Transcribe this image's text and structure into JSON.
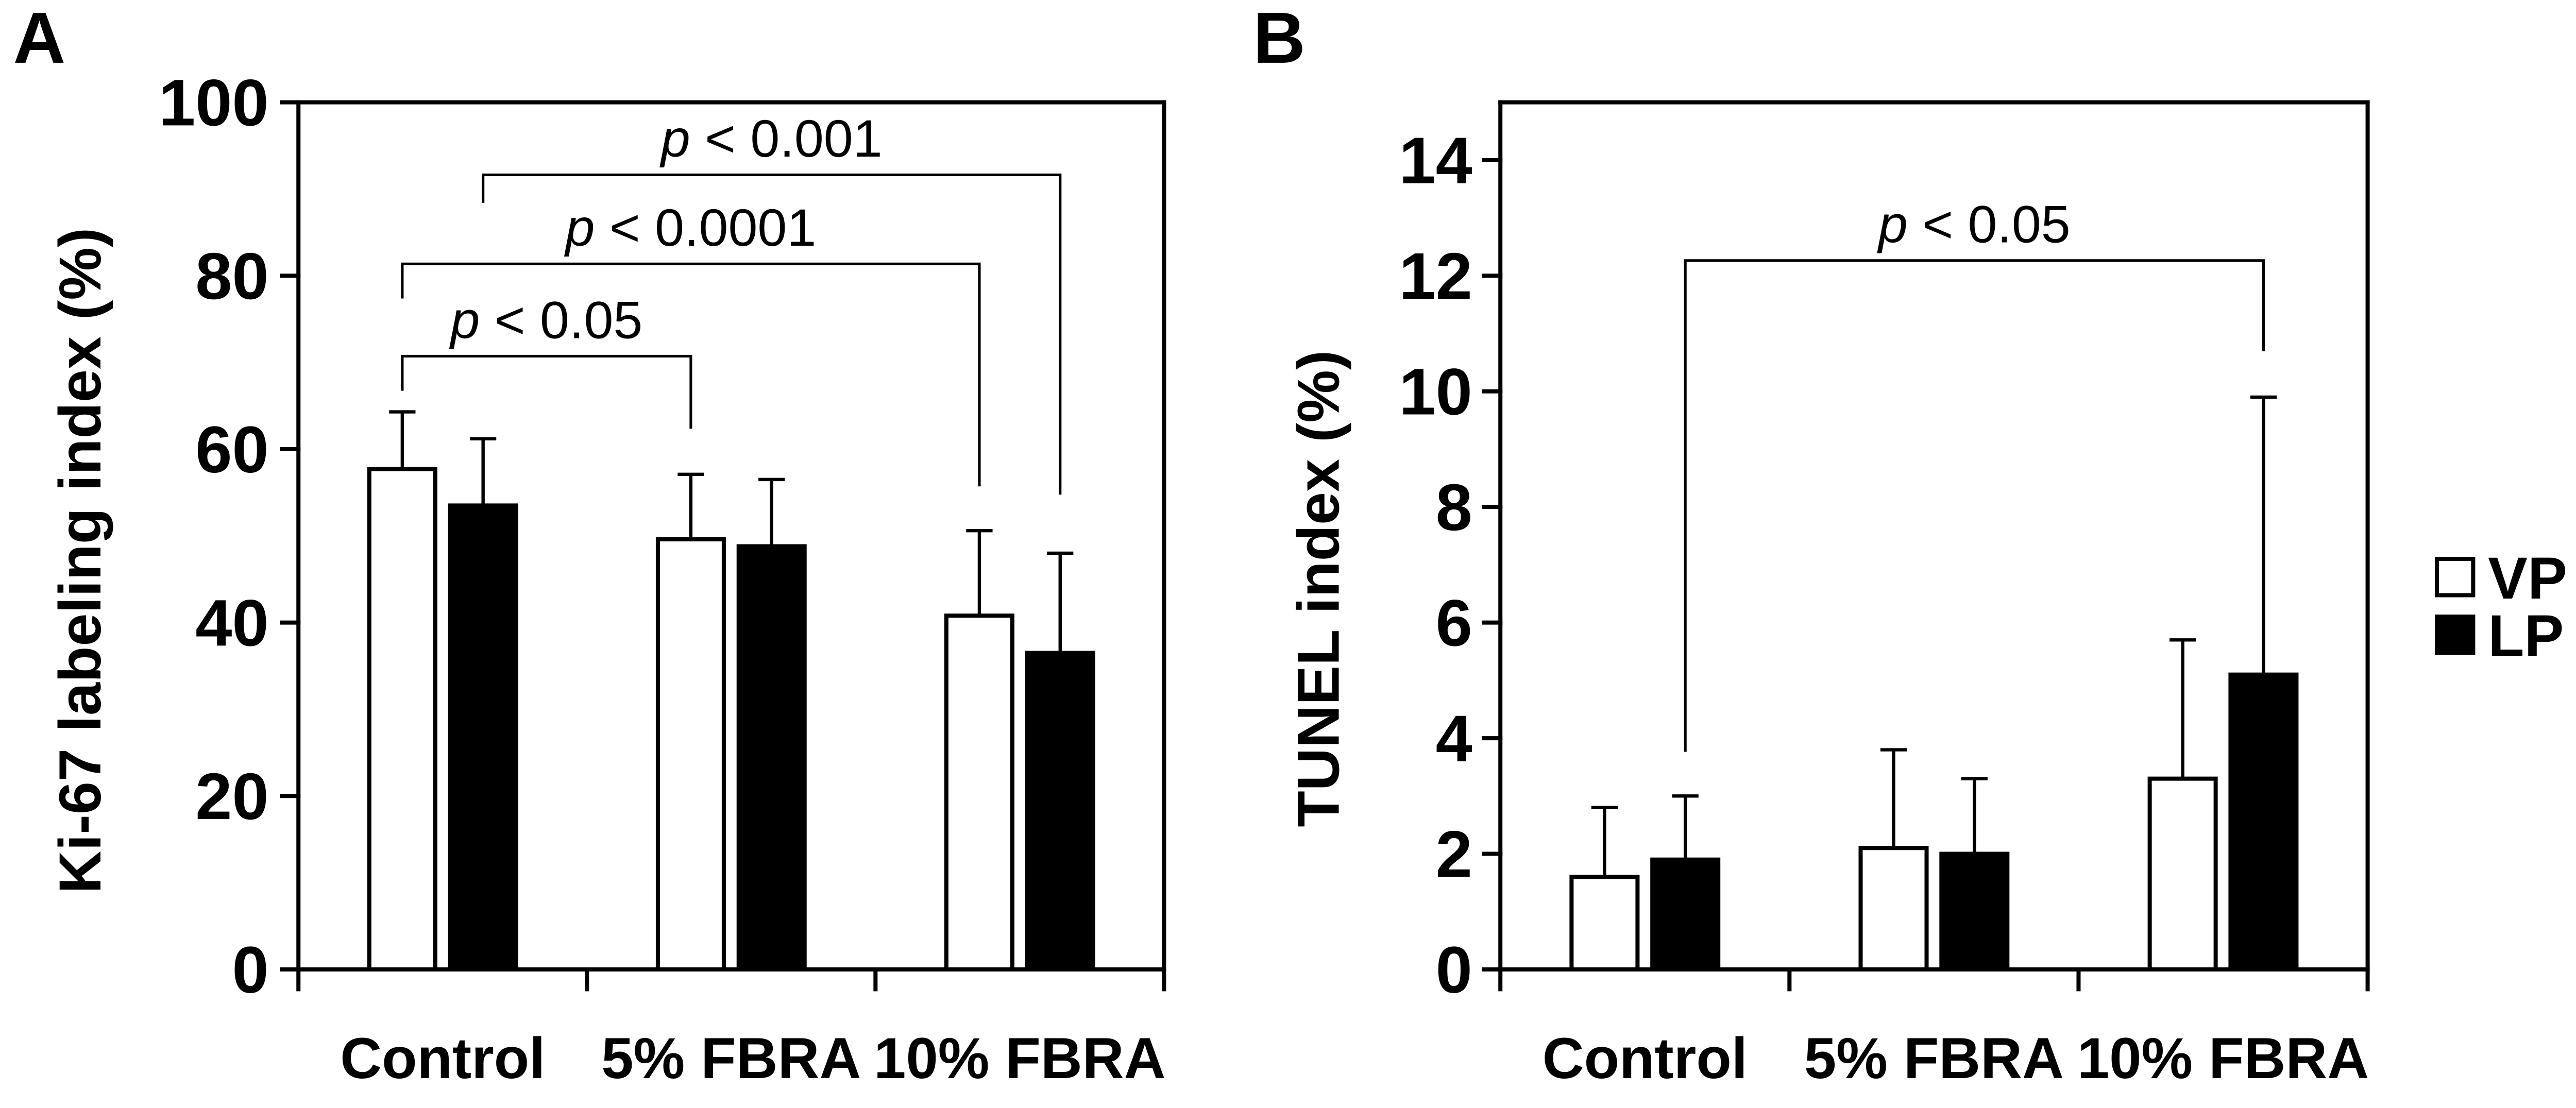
{
  "chart_data": [
    {
      "panel_label": "A",
      "type": "bar",
      "categories": [
        "Control",
        "5% FBRA",
        "10% FBRA"
      ],
      "ylabel": "Ki-67 labeling index (%)",
      "ylim": [
        0,
        100
      ],
      "yticks": [
        0,
        20,
        40,
        60,
        80,
        100
      ],
      "grid": false,
      "series": [
        {
          "legend_entry": 0,
          "values": [
            57.7,
            49.6,
            40.8
          ],
          "error_plus": [
            6.6,
            7.5,
            9.8
          ]
        },
        {
          "legend_entry": 1,
          "values": [
            53.5,
            48.8,
            36.5
          ],
          "error_plus": [
            7.7,
            7.7,
            11.5
          ]
        }
      ],
      "annotations": [
        {
          "text": "p < 0.05",
          "from": {
            "category": 0,
            "series": 0
          },
          "to": {
            "category": 1,
            "series": 0
          }
        },
        {
          "text": "p < 0.0001",
          "from": {
            "category": 0,
            "series": 0
          },
          "to": {
            "category": 2,
            "series": 0
          }
        },
        {
          "text": "p < 0.001",
          "from": {
            "category": 0,
            "series": 1
          },
          "to": {
            "category": 2,
            "series": 1
          }
        }
      ]
    },
    {
      "panel_label": "B",
      "type": "bar",
      "categories": [
        "Control",
        "5% FBRA",
        "10% FBRA"
      ],
      "ylabel": "TUNEL index (%)",
      "ylim": [
        0,
        15
      ],
      "yticks": [
        0,
        2,
        4,
        6,
        8,
        10,
        12,
        14
      ],
      "grid": false,
      "series": [
        {
          "legend_entry": 0,
          "values": [
            1.6,
            2.1,
            3.3
          ],
          "error_plus": [
            1.2,
            1.7,
            2.4
          ]
        },
        {
          "legend_entry": 1,
          "values": [
            1.9,
            2.0,
            5.1
          ],
          "error_plus": [
            1.1,
            1.3,
            4.8
          ]
        }
      ],
      "annotations": [
        {
          "text": "p < 0.05",
          "from": {
            "category": 0,
            "series": 1
          },
          "to": {
            "category": 2,
            "series": 1
          }
        }
      ],
      "legend": {
        "position": "right",
        "outline": "#000000",
        "entries": [
          {
            "label": "VP",
            "fill": "#ffffff"
          },
          {
            "label": "LP",
            "fill": "#000000"
          }
        ]
      }
    }
  ]
}
